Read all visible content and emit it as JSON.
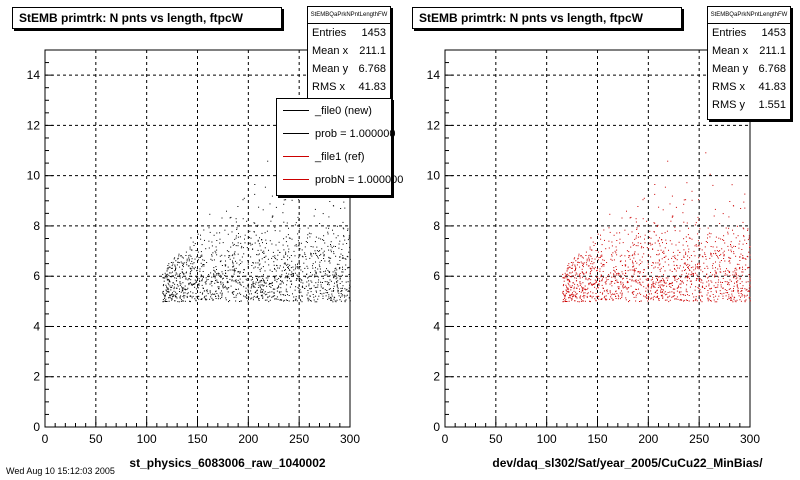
{
  "chart_data": [
    {
      "type": "scatter",
      "title": "StEMB primtrk: N pnts vs length, ftpcW",
      "xlabel": "st_physics_6083006_raw_1040002",
      "ylabel": "",
      "xlim": [
        0,
        300
      ],
      "ylim": [
        0,
        15
      ],
      "xticks": [
        "0",
        "50",
        "100",
        "150",
        "200",
        "250",
        "300"
      ],
      "yticks": [
        "0",
        "2",
        "4",
        "6",
        "8",
        "10",
        "12",
        "14"
      ],
      "grid": true,
      "marker_color": "#000000",
      "series": [
        {
          "name": "_file0 (new)",
          "points_region": {
            "x_range": [
              115,
              300
            ],
            "y_range": [
              5,
              11
            ],
            "count": 1453
          }
        }
      ],
      "stats": {
        "header": "StEMBQaPrkNPntLengthFW",
        "rows": [
          {
            "label": "Entries",
            "value": "1453"
          },
          {
            "label": "Mean x",
            "value": "211.1"
          },
          {
            "label": "Mean y",
            "value": "6.768"
          },
          {
            "label": "RMS x",
            "value": "41.83"
          }
        ]
      },
      "legend": {
        "entries": [
          {
            "label": "_file0 (new)",
            "color": "#000000"
          },
          {
            "label": "prob = 1.000000",
            "color": "#000000"
          },
          {
            "label": "_file1 (ref)",
            "color": "#cc0000"
          },
          {
            "label": "probN = 1.000000",
            "color": "#cc0000"
          }
        ]
      }
    },
    {
      "type": "scatter",
      "title": "StEMB primtrk: N pnts vs length, ftpcW",
      "xlabel": "dev/daq_sl302/Sat/year_2005/CuCu22_MinBias/",
      "ylabel": "",
      "xlim": [
        0,
        300
      ],
      "ylim": [
        0,
        15
      ],
      "xticks": [
        "0",
        "50",
        "100",
        "150",
        "200",
        "250",
        "300"
      ],
      "yticks": [
        "0",
        "2",
        "4",
        "6",
        "8",
        "10",
        "12",
        "14"
      ],
      "grid": true,
      "marker_color": "#cc0000",
      "series": [
        {
          "name": "_file1 (ref)",
          "points_region": {
            "x_range": [
              115,
              300
            ],
            "y_range": [
              5,
              11
            ],
            "count": 1453
          }
        }
      ],
      "stats": {
        "header": "StEMBQaPrkNPntLengthFW",
        "rows": [
          {
            "label": "Entries",
            "value": "1453"
          },
          {
            "label": "Mean x",
            "value": "211.1"
          },
          {
            "label": "Mean y",
            "value": "6.768"
          },
          {
            "label": "RMS x",
            "value": "41.83"
          },
          {
            "label": "RMS y",
            "value": "1.551"
          }
        ]
      }
    }
  ],
  "footer_text": "Wed Aug 10 15:12:03 2005"
}
